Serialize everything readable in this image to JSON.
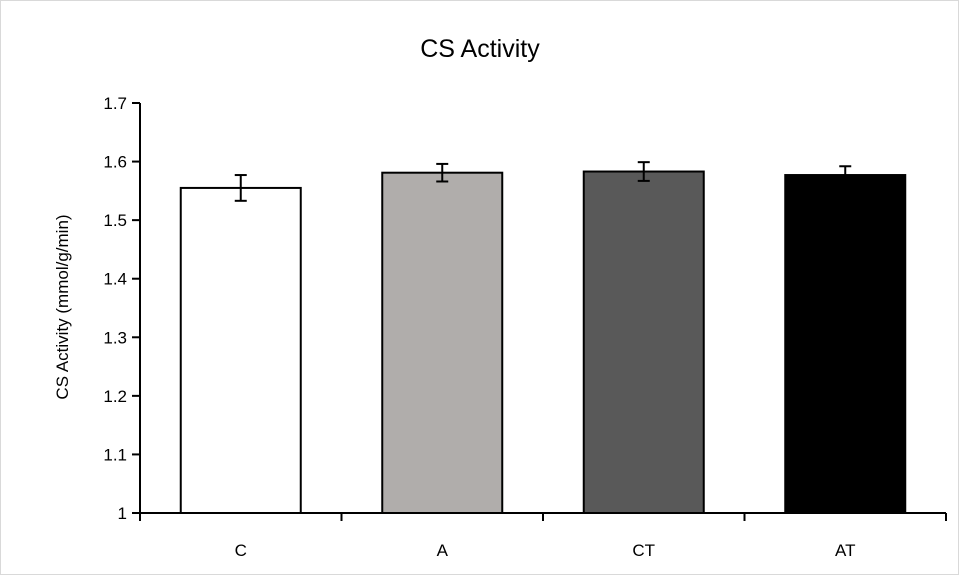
{
  "chart_data": {
    "type": "bar",
    "title": "CS Activity",
    "xlabel": "",
    "ylabel": "CS Activity (mmol/g/min)",
    "categories": [
      "C",
      "A",
      "CT",
      "AT"
    ],
    "values": [
      1.555,
      1.581,
      1.583,
      1.577
    ],
    "error": [
      0.022,
      0.015,
      0.016,
      0.015
    ],
    "colors": [
      "#ffffff",
      "#b0adab",
      "#595959",
      "#000000"
    ],
    "ylim": [
      1.0,
      1.7
    ],
    "yticks": [
      1,
      1.1,
      1.2,
      1.3,
      1.4,
      1.5,
      1.6,
      1.7
    ],
    "ytick_labels": [
      "1",
      "1.1",
      "1.2",
      "1.3",
      "1.4",
      "1.5",
      "1.6",
      "1.7"
    ],
    "grid": false,
    "legend": "none"
  }
}
